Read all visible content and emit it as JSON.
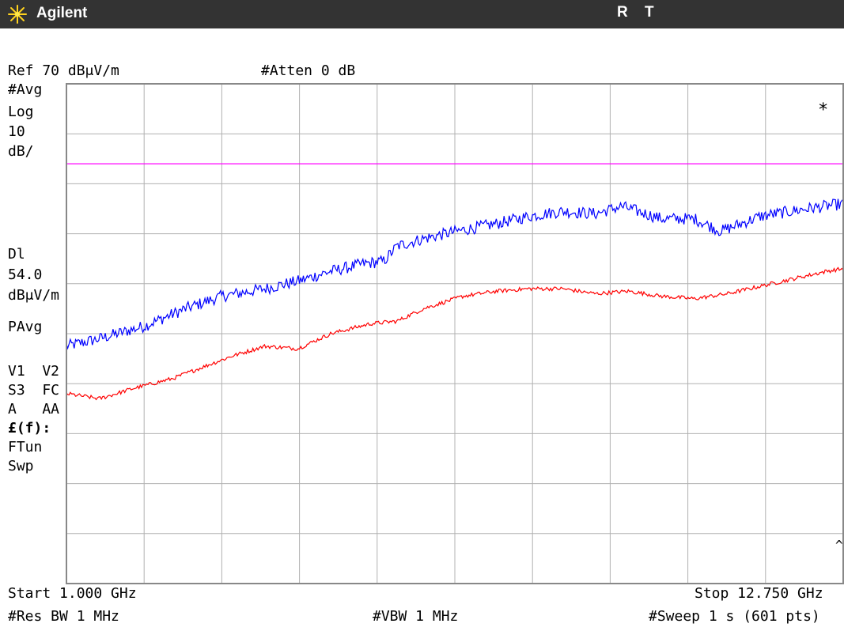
{
  "header": {
    "brand": "Agilent",
    "status_r": "R",
    "status_t": "T",
    "logo_icon": "agilent-spark-icon"
  },
  "instrument": {
    "ref_level": "Ref 70 dBμV/m",
    "attenuation": "#Atten 0 dB",
    "left_annotations": {
      "avg": "#Avg",
      "scale_type": "Log",
      "scale_value": "10",
      "scale_unit": "dB/",
      "display_line_label": "Dl",
      "display_line_value": "54.0",
      "display_line_unit": "dBμV/m",
      "detector": "PAvg",
      "traces": "V1  V2",
      "trace_modes": "S3  FC",
      "trace_modes2": "A   AA",
      "freq_corr": "£(f):",
      "ftun": "FTun",
      "swp": "Swp"
    },
    "corner_marker": "*",
    "caret": "^",
    "start_freq": "Start 1.000 GHz",
    "stop_freq": "Stop 12.750 GHz",
    "res_bw": "#Res BW 1 MHz",
    "vbw": "#VBW 1 MHz",
    "sweep": "#Sweep 1 s (601 pts)"
  },
  "chart_data": {
    "type": "line",
    "title": "",
    "xlabel": "",
    "ylabel": "",
    "x_unit": "GHz",
    "y_unit": "dBμV/m",
    "xlim": [
      1.0,
      12.75
    ],
    "ylim": [
      -30,
      70
    ],
    "x_divisions": 10,
    "y_divisions": 10,
    "grid": true,
    "display_line": {
      "value": 54.0,
      "color": "#ff00ff"
    },
    "series": [
      {
        "color": "#0000ff",
        "noise": 1.2,
        "x": [
          1.0,
          1.5,
          2.175,
          2.8,
          3.35,
          4.0,
          4.5,
          5.0,
          5.5,
          5.8,
          6.0,
          6.4,
          6.9,
          7.5,
          8.0,
          8.5,
          9.0,
          9.4,
          10.0,
          10.5,
          10.9,
          11.5,
          12.2,
          12.75
        ],
        "y": [
          17.5,
          19.0,
          21.5,
          25.0,
          27.5,
          29.0,
          30.5,
          32.5,
          34.0,
          34.5,
          37.5,
          39.0,
          40.5,
          42.0,
          43.5,
          44.5,
          44.0,
          45.5,
          43.0,
          43.0,
          40.5,
          43.5,
          45.0,
          46.0
        ]
      },
      {
        "color": "#ff0000",
        "noise": 0.4,
        "x": [
          1.0,
          1.5,
          2.0,
          2.6,
          3.0,
          3.5,
          4.0,
          4.5,
          5.0,
          5.6,
          6.0,
          6.4,
          7.0,
          7.5,
          8.0,
          8.5,
          9.0,
          9.5,
          10.0,
          10.5,
          11.0,
          11.5,
          12.0,
          12.5,
          12.75
        ],
        "y": [
          8.0,
          7.0,
          9.0,
          11.0,
          13.0,
          15.5,
          17.5,
          17.0,
          20.0,
          22.0,
          22.5,
          25.0,
          27.5,
          28.5,
          29.0,
          29.0,
          28.0,
          28.5,
          27.5,
          27.0,
          28.0,
          29.5,
          31.0,
          32.5,
          33.0
        ]
      }
    ]
  }
}
